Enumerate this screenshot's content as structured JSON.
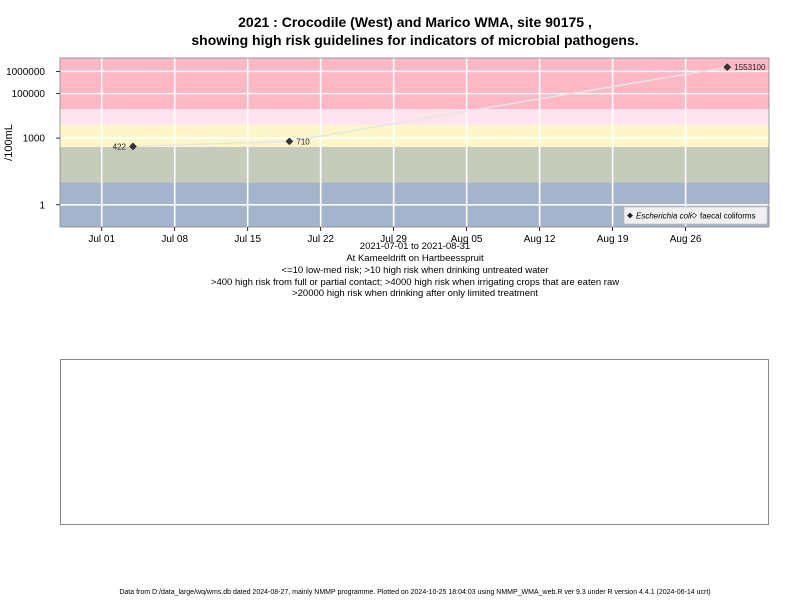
{
  "title": {
    "line1": "2021 : Crocodile (West) and Marico WMA, site 90175 ,",
    "line2": "showing high risk guidelines for indicators of microbial pathogens."
  },
  "chart_data": {
    "type": "line",
    "ylabel": "/100mL",
    "y_scale": "log",
    "x_ticks": [
      "Jul 01",
      "Jul 08",
      "Jul 15",
      "Jul 22",
      "Jul 29",
      "Aug 05",
      "Aug 12",
      "Aug 19",
      "Aug 26"
    ],
    "x_tick_dates": [
      "2021-07-01",
      "2021-07-08",
      "2021-07-15",
      "2021-07-22",
      "2021-07-29",
      "2021-08-05",
      "2021-08-12",
      "2021-08-19",
      "2021-08-26"
    ],
    "y_ticks": [
      {
        "value": 1,
        "label": "1"
      },
      {
        "value": 1000,
        "label": "1000"
      },
      {
        "value": 100000,
        "label": "100000"
      },
      {
        "value": 1000000,
        "label": "1000000"
      }
    ],
    "x_range": [
      "2021-06-27",
      "2021-09-03"
    ],
    "y_range": [
      0.1,
      4000000
    ],
    "bands": [
      {
        "from": 0.1,
        "to": 10,
        "color": "#a4b4cc",
        "label": "low-med risk"
      },
      {
        "from": 10,
        "to": 400,
        "color": "#c6ccbc",
        "label": "high risk when drinking untreated water"
      },
      {
        "from": 400,
        "to": 4000,
        "color": "#fdf6c8",
        "label": "high risk from full or partial contact"
      },
      {
        "from": 4000,
        "to": 20000,
        "color": "#fde4ef",
        "label": "high risk when irrigating crops"
      },
      {
        "from": 20000,
        "to": 4000000,
        "color": "#fdb8c4",
        "label": "high risk when drinking after limited treatment"
      }
    ],
    "series": [
      {
        "name": "Escherichia coli",
        "marker": "filled-diamond",
        "color": "#333333",
        "points": [
          {
            "date": "2021-07-04",
            "value": 422,
            "label": "422"
          },
          {
            "date": "2021-07-19",
            "value": 710,
            "label": "710"
          },
          {
            "date": "2021-08-30",
            "value": 1553100,
            "label": "1553100"
          }
        ]
      }
    ],
    "legend": {
      "position": "bottom-right",
      "items": [
        {
          "label": "Escherichia coli",
          "marker": "filled-diamond",
          "italic": true
        },
        {
          "label": "faecal coliforms",
          "marker": "open-diamond",
          "italic": false
        }
      ]
    },
    "grid": true
  },
  "caption": {
    "date_range": "2021-07-01 to 2021-08-31",
    "location": "At Kameeldrift on Hartbeesspruit",
    "line1": "<=10 low-med risk; >10 high risk when drinking untreated water",
    "line2": ">400 high risk from full or partial contact; >4000 high risk when irrigating crops that are eaten raw",
    "line3": ">20000 high risk when drinking after only limited treatment"
  },
  "footer": "Data from D:/data_large/wq/wms.db dated 2024-08-27, mainly NMMP programme. Plotted on 2024-10-25 18:04:03 using NMMP_WMA_web.R ver 9.3 under R version 4.4.1 (2024-06-14 ucrt)"
}
